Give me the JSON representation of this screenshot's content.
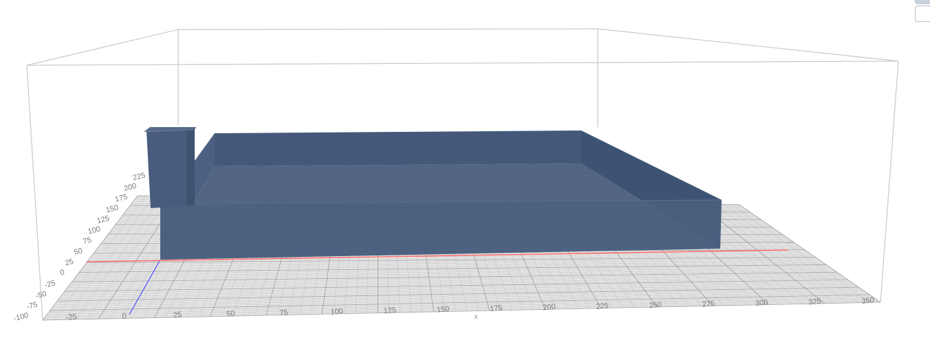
{
  "viewer": {
    "background": "#ffffff",
    "bounding_box_color": "#c8c8c8",
    "grid_fill": "#e6e6e6",
    "grid_line_color": "#8e8e8e",
    "x_axis_color": "#ff6b6b",
    "y_axis_color": "#4a4aff",
    "model_color": "#465a78"
  },
  "axes": {
    "x_ticks": [
      "-25",
      "0",
      "25",
      "50",
      "75",
      "100",
      "125",
      "150",
      "175",
      "200",
      "225",
      "250",
      "275",
      "300",
      "325",
      "350"
    ],
    "x_title": "x",
    "y_ticks": [
      "-100",
      "-75",
      "-50",
      "-25",
      "0",
      "25",
      "50",
      "75",
      "100",
      "125",
      "150",
      "175",
      "200",
      "225"
    ]
  },
  "controls": {
    "view_top": "",
    "view_bottom": ""
  }
}
